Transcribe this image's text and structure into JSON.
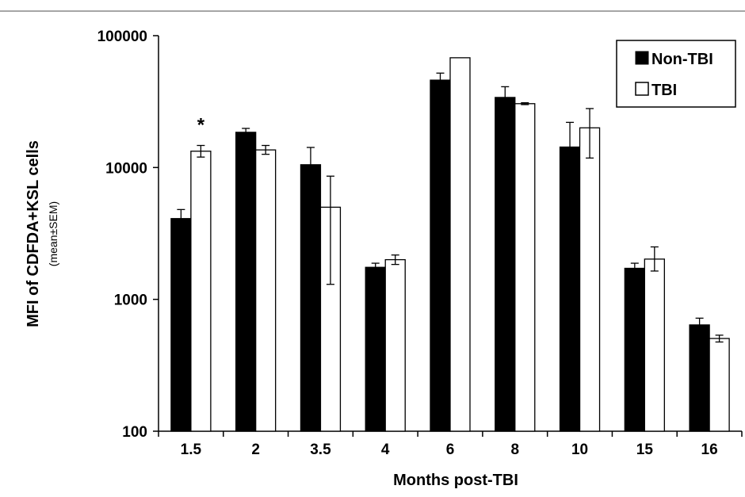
{
  "chart_data": {
    "type": "bar",
    "scale": "log",
    "title": "",
    "xlabel": "Months post-TBI",
    "ylabel": "MFI of CDFDA+KSL cells",
    "ylabel_sub": "(mean±SEM)",
    "ylim": [
      100,
      100000
    ],
    "yticks": [
      "100",
      "1000",
      "10000",
      "100000"
    ],
    "categories": [
      "1.5",
      "2",
      "3.5",
      "4",
      "6",
      "8",
      "10",
      "15",
      "16"
    ],
    "legend_position": "top-right",
    "grid": false,
    "series": [
      {
        "name": "Non-TBI",
        "fill": "#000000",
        "values": [
          4100,
          18500,
          10500,
          1750,
          46000,
          34000,
          14300,
          1720,
          640
        ],
        "err_high": [
          4800,
          19800,
          14200,
          1880,
          52000,
          41000,
          22000,
          1880,
          720
        ],
        "err_low": [
          4100,
          18500,
          10500,
          1750,
          46000,
          34000,
          14300,
          1720,
          640
        ]
      },
      {
        "name": "TBI",
        "fill": "#ffffff",
        "values": [
          13300,
          13600,
          5000,
          2000,
          68000,
          30500,
          20000,
          2020,
          505
        ],
        "err_high": [
          14700,
          14700,
          8600,
          2170,
          68000,
          31000,
          28000,
          2500,
          535
        ],
        "err_low": [
          12000,
          12600,
          1300,
          1840,
          68000,
          30000,
          11800,
          1640,
          475
        ]
      }
    ],
    "annotations": [
      {
        "text": "*",
        "category": "1.5",
        "series": "TBI"
      }
    ]
  }
}
